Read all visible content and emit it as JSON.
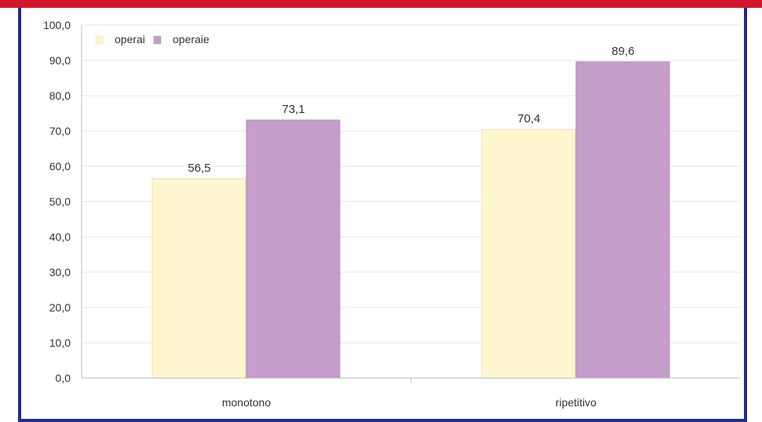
{
  "chart_data": {
    "type": "bar",
    "categories": [
      "monotono",
      "ripetitivo"
    ],
    "series": [
      {
        "name": "operai",
        "values": [
          56.5,
          70.4
        ],
        "color": "#fdf6cf",
        "stroke": "#e6dfb4"
      },
      {
        "name": "operaie",
        "values": [
          73.1,
          89.6
        ],
        "color": "#c59dca",
        "stroke": "#b58cba"
      }
    ],
    "data_labels": [
      [
        "56,5",
        "70,4"
      ],
      [
        "73,1",
        "89,6"
      ]
    ],
    "ylim": [
      0,
      100
    ],
    "y_ticks": [
      "0,0",
      "10,0",
      "20,0",
      "30,0",
      "40,0",
      "50,0",
      "60,0",
      "70,0",
      "80,0",
      "90,0",
      "100,0"
    ],
    "title": "",
    "xlabel": "",
    "ylabel": "",
    "legend_position": "top-left",
    "grid": true
  },
  "colors": {
    "top_bar": "#d4162b",
    "border": "#1e2d8c",
    "grid": "#e4e4e4",
    "axis": "#bdbdbd"
  }
}
